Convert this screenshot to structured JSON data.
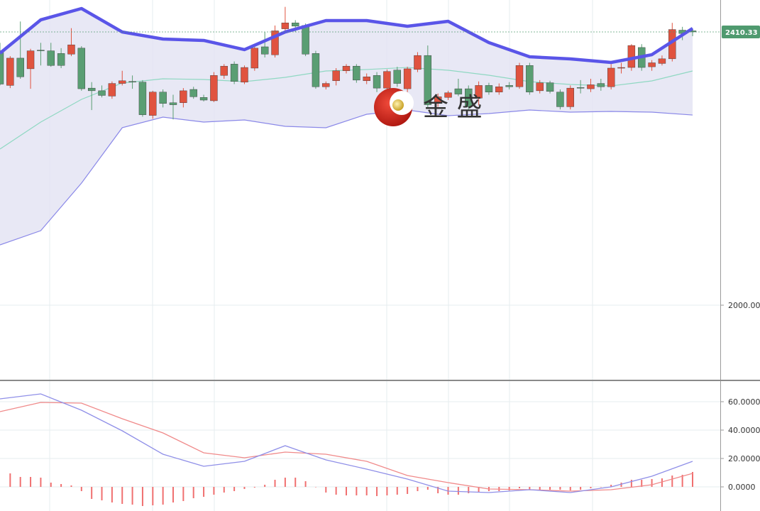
{
  "watermark": "金 盛",
  "chart_data": [
    {
      "type": "candlestick",
      "open": [
        2382,
        2330,
        2371,
        2355,
        2383,
        2382,
        2378,
        2377,
        2386,
        2326,
        2322,
        2314,
        2333,
        2336,
        2335,
        2285,
        2320,
        2304,
        2304,
        2324,
        2312,
        2307,
        2345,
        2362,
        2335,
        2356,
        2388,
        2376,
        2415,
        2424,
        2420,
        2378,
        2328,
        2337,
        2352,
        2359,
        2337,
        2345,
        2326,
        2353,
        2325,
        2354,
        2375,
        2304,
        2312,
        2325,
        2325,
        2311,
        2330,
        2320,
        2330,
        2328,
        2360,
        2322,
        2334,
        2320,
        2298,
        2327,
        2325,
        2333,
        2328,
        2356,
        2357,
        2387,
        2358,
        2363,
        2370,
        2413,
        2412
      ],
      "high": [
        2394,
        2374,
        2426,
        2385,
        2394,
        2394,
        2386,
        2416,
        2389,
        2335,
        2330,
        2336,
        2352,
        2345,
        2338,
        2322,
        2324,
        2316,
        2326,
        2328,
        2316,
        2350,
        2362,
        2366,
        2360,
        2390,
        2410,
        2420,
        2448,
        2428,
        2423,
        2382,
        2336,
        2356,
        2362,
        2362,
        2348,
        2350,
        2354,
        2358,
        2358,
        2380,
        2390,
        2318,
        2322,
        2340,
        2330,
        2336,
        2334,
        2333,
        2335,
        2364,
        2364,
        2338,
        2337,
        2324,
        2330,
        2338,
        2340,
        2340,
        2362,
        2364,
        2392,
        2392,
        2368,
        2375,
        2424,
        2418,
        2416
      ],
      "low": [
        2330,
        2326,
        2340,
        2325,
        2360,
        2358,
        2356,
        2374,
        2322,
        2293,
        2312,
        2310,
        2330,
        2325,
        2283,
        2280,
        2297,
        2279,
        2297,
        2310,
        2306,
        2305,
        2340,
        2332,
        2332,
        2352,
        2372,
        2372,
        2410,
        2410,
        2374,
        2325,
        2324,
        2330,
        2348,
        2334,
        2332,
        2320,
        2322,
        2328,
        2320,
        2350,
        2296,
        2298,
        2308,
        2314,
        2294,
        2300,
        2316,
        2316,
        2324,
        2325,
        2316,
        2318,
        2318,
        2294,
        2294,
        2318,
        2320,
        2322,
        2324,
        2348,
        2352,
        2352,
        2352,
        2360,
        2366,
        2398,
        2404
      ],
      "close": [
        2332,
        2371,
        2343,
        2382,
        2382,
        2360,
        2360,
        2391,
        2325,
        2322,
        2315,
        2333,
        2337,
        2335,
        2286,
        2320,
        2303,
        2301,
        2322,
        2313,
        2308,
        2345,
        2359,
        2336,
        2357,
        2386,
        2377,
        2412,
        2424,
        2419,
        2377,
        2328,
        2333,
        2352,
        2359,
        2338,
        2343,
        2326,
        2351,
        2333,
        2355,
        2375,
        2301,
        2313,
        2319,
        2317,
        2298,
        2330,
        2320,
        2328,
        2328,
        2360,
        2320,
        2334,
        2321,
        2298,
        2326,
        2326,
        2331,
        2328,
        2356,
        2357,
        2390,
        2357,
        2364,
        2370,
        2414,
        2408,
        2410.33
      ],
      "up_color": "#e0533f",
      "down_color": "#5a9e73",
      "bands": {
        "x": [
          0,
          4,
          8,
          12,
          16,
          20,
          24,
          28,
          32,
          36,
          40,
          44,
          48,
          52,
          56,
          60,
          64,
          68
        ],
        "upper": [
          2378.4,
          2428.5,
          2445.5,
          2410.3,
          2399.7,
          2397.6,
          2383.7,
          2410.3,
          2427.4,
          2427.4,
          2418.9,
          2426.3,
          2394.4,
          2373.0,
          2369.8,
          2364.5,
          2376.2,
          2415.7
        ],
        "middle": [
          2234.5,
          2275.0,
          2309.1,
          2333.6,
          2340.0,
          2338.9,
          2335.7,
          2342.1,
          2351.7,
          2353.9,
          2357.0,
          2352.8,
          2345.3,
          2335.7,
          2331.5,
          2329.3,
          2336.8,
          2351.7
        ],
        "lower": [
          2090.6,
          2111.9,
          2183.3,
          2266.5,
          2282.4,
          2275.0,
          2278.2,
          2268.6,
          2266.5,
          2286.7,
          2293.1,
          2284.6,
          2287.8,
          2293.1,
          2289.9,
          2291.0,
          2289.9,
          2285.6
        ],
        "upper_color": "#5a55e8",
        "middle_color": "#8fd8c2",
        "lower_color": "#8a88e8",
        "fill_color": "#e4e4f3"
      },
      "last_price": 2410.33,
      "last_price_color": "#4f9a6f",
      "ylim": [
        1888.1,
        2458.3
      ],
      "yticks": [
        {
          "value": 2000,
          "label": "2000.00"
        }
      ],
      "grid": true
    },
    {
      "type": "macd",
      "x": [
        0,
        4,
        8,
        12,
        16,
        20,
        24,
        28,
        32,
        36,
        40,
        44,
        48,
        52,
        56,
        60,
        64,
        68
      ],
      "dif": [
        62,
        65.5,
        54,
        39.5,
        23,
        14.5,
        18,
        29,
        19,
        12.5,
        5.5,
        -3,
        -4,
        -2,
        -4,
        0,
        7.5,
        18
      ],
      "dea": [
        53,
        59.5,
        59,
        48,
        38,
        24,
        20.5,
        24.5,
        23,
        18,
        8,
        3,
        -1.5,
        -2,
        -3,
        -2,
        1.5,
        9.5
      ],
      "histogram": [
        null,
        9.5,
        7,
        7,
        6.5,
        3,
        2,
        1,
        -3,
        -8.5,
        -9.5,
        -11,
        -12,
        -12.5,
        -13.5,
        -13,
        -12.5,
        -11,
        -10,
        -8,
        -7,
        -5.5,
        -4,
        -3,
        -1.5,
        -0.5,
        1.5,
        5,
        6.5,
        6.5,
        4,
        0,
        -4,
        -5.5,
        -6,
        -6,
        -6,
        -6.5,
        -6,
        -5.5,
        -5,
        -3,
        -2,
        -4.5,
        -5.5,
        -5.5,
        -4.5,
        -3.5,
        -3,
        -3,
        -2.5,
        -1,
        -2,
        -2,
        -2,
        -2,
        -2.5,
        -2,
        -1,
        0,
        1.5,
        3,
        5,
        5,
        5.5,
        6,
        8,
        8.5,
        10.5
      ],
      "dif_color": "#8f8fe8",
      "dea_color": "#f08a8a",
      "histogram_color": "#f07070",
      "ylim": [
        -17,
        74.5
      ],
      "yticks": [
        {
          "value": 60,
          "label": "60.0000"
        },
        {
          "value": 40,
          "label": "40.0000"
        },
        {
          "value": 20,
          "label": "20.0000"
        },
        {
          "value": 0,
          "label": "0.0000"
        }
      ],
      "grid": true
    }
  ]
}
